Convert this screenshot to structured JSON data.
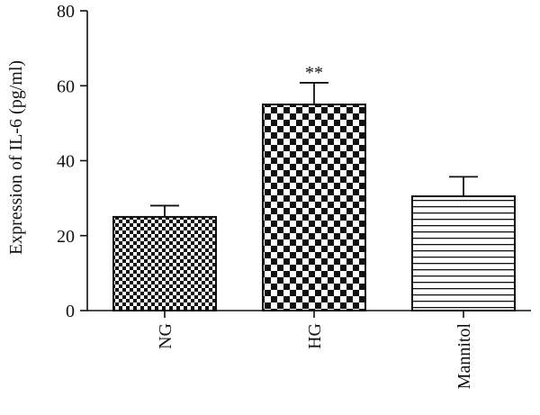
{
  "chart_data": {
    "type": "bar",
    "categories": [
      "NG",
      "HG",
      "Mannitol"
    ],
    "values": [
      25,
      55,
      30.5
    ],
    "errors": [
      3,
      5.8,
      5.2
    ],
    "annotations": [
      "",
      "**",
      ""
    ],
    "patterns": [
      "fine-checker",
      "coarse-checker",
      "horizontal-stripes"
    ],
    "xlabel": "",
    "ylabel": "Expression of IL-6 (pg/ml)",
    "ylim": [
      0,
      80
    ],
    "yticks": [
      0,
      20,
      40,
      60,
      80
    ],
    "grid": false,
    "legend": "none",
    "colors": {
      "bar_fill": "#ffffff",
      "pattern": "#111111",
      "axis": "#111111"
    }
  }
}
